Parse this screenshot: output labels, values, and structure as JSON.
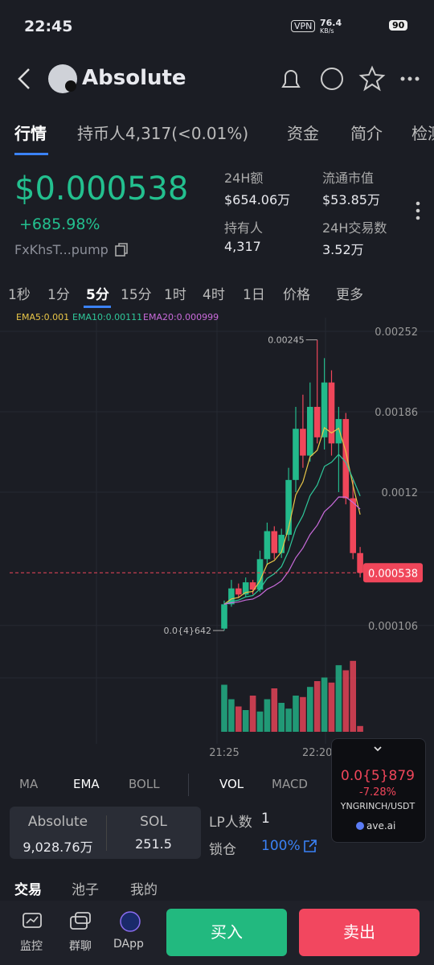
{
  "status_bar": {
    "time": "22:45",
    "vpn": "VPN",
    "speed": "76.4",
    "speed_unit": "KB/s",
    "battery": "90"
  },
  "header": {
    "title": "Absolute"
  },
  "tabs": [
    "行情",
    "持币人4,317(<0.01%)",
    "资金",
    "简介",
    "检测"
  ],
  "summary": {
    "price": "$0.000538",
    "change": "+685.98%",
    "address": "FxKhsT...pump",
    "stats": [
      {
        "label": "24H额",
        "value": "$654.06万"
      },
      {
        "label": "流通市值",
        "value": "$53.85万"
      },
      {
        "label": "持有人",
        "value": "4,317"
      },
      {
        "label": "24H交易数",
        "value": "3.52万"
      }
    ]
  },
  "intervals": [
    "1秒",
    "1分",
    "5分",
    "15分",
    "1时",
    "4时",
    "1日",
    "价格",
    "更多"
  ],
  "chart_data": {
    "type": "candlestick",
    "ema_labels": [
      "EMA5:0.001",
      "EMA10:0.00111",
      "EMA20:0.000999"
    ],
    "categories": [
      "21:25",
      null,
      null,
      null,
      null,
      null,
      null,
      null,
      null,
      null,
      null,
      null,
      null,
      "22:20",
      null,
      null,
      null,
      null,
      null,
      null
    ],
    "open": [
      8e-05,
      0.00028,
      0.00041,
      0.00036,
      0.00046,
      0.0004,
      0.00065,
      0.00088,
      0.0007,
      0.00085,
      0.0013,
      0.00172,
      0.0015,
      0.0019,
      0.00165,
      0.0021,
      0.0016,
      0.0018,
      0.00115,
      0.0007
    ],
    "high": [
      0.00031,
      0.00048,
      0.00045,
      0.0005,
      0.00048,
      0.00072,
      0.00095,
      0.00092,
      0.0009,
      0.0014,
      0.0019,
      0.002,
      0.0021,
      0.00245,
      0.0023,
      0.0022,
      0.0019,
      0.00185,
      0.0013,
      0.00075
    ],
    "low": [
      6.42e-05,
      0.00026,
      0.00033,
      0.00034,
      0.00036,
      0.00038,
      0.0006,
      0.00065,
      0.00066,
      0.0008,
      0.0012,
      0.0014,
      0.00145,
      0.0016,
      0.00155,
      0.0015,
      0.0012,
      0.0011,
      0.00065,
      0.0005
    ],
    "close": [
      0.00028,
      0.00041,
      0.00036,
      0.00046,
      0.0004,
      0.00065,
      0.00088,
      0.0007,
      0.00085,
      0.0013,
      0.00172,
      0.0015,
      0.0019,
      0.00165,
      0.0021,
      0.0016,
      0.0018,
      0.00115,
      0.0007,
      0.000538
    ],
    "volume": [
      65,
      45,
      35,
      30,
      50,
      28,
      45,
      60,
      40,
      32,
      50,
      48,
      62,
      70,
      75,
      68,
      92,
      85,
      98,
      8
    ],
    "ylim": [
      -4.08e-05,
      0.0026322
    ],
    "yticks": [
      0.00252,
      0.00186,
      0.0012,
      0.000106
    ],
    "last_price": 0.000538,
    "annotations": [
      {
        "value": 0.00245,
        "label": "0.00245"
      },
      {
        "value": 6.42e-05,
        "label": "0.0{4}642"
      }
    ],
    "up_color": "#23b98b",
    "down_color": "#f0465a"
  },
  "indicators": [
    "MA",
    "EMA",
    "BOLL",
    "VOL",
    "MACD"
  ],
  "pool": {
    "token_name": "Absolute",
    "token_amount": "9,028.76万",
    "quote_name": "SOL",
    "quote_amount": "251.5",
    "lp_label": "LP人数",
    "lp_value": "1",
    "lock_label": "锁仓",
    "lock_value": "100%"
  },
  "popup": {
    "price": "0.0{5}879",
    "change": "-7.28%",
    "pair": "YNGRINCH/USDT",
    "brand": "ave.ai"
  },
  "bottom_tabs": [
    "交易",
    "池子",
    "我的"
  ],
  "nav": [
    "监控",
    "群聊",
    "DApp"
  ],
  "buttons": {
    "buy": "买入",
    "sell": "卖出"
  }
}
